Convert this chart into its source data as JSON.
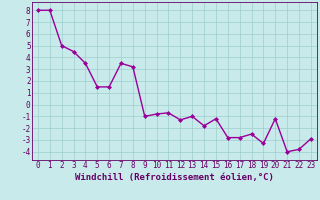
{
  "x": [
    0,
    1,
    2,
    3,
    4,
    5,
    6,
    7,
    8,
    9,
    10,
    11,
    12,
    13,
    14,
    15,
    16,
    17,
    18,
    19,
    20,
    21,
    22,
    23
  ],
  "y": [
    8,
    8,
    5,
    4.5,
    3.5,
    1.5,
    1.5,
    3.5,
    3.2,
    -1.0,
    -0.8,
    -0.7,
    -1.3,
    -1.0,
    -1.8,
    -1.2,
    -2.8,
    -2.8,
    -2.5,
    -3.3,
    -1.2,
    -4.0,
    -3.8,
    -2.9
  ],
  "line_color": "#990099",
  "marker": "D",
  "marker_size": 2,
  "bg_color": "#c8eaea",
  "grid_color": "#9ecece",
  "xlabel": "Windchill (Refroidissement éolien,°C)",
  "xlim_min": -0.5,
  "xlim_max": 23.5,
  "ylim_min": -4.7,
  "ylim_max": 8.7,
  "yticks": [
    8,
    7,
    6,
    5,
    4,
    3,
    2,
    1,
    0,
    -1,
    -2,
    -3,
    -4
  ],
  "xticks": [
    0,
    1,
    2,
    3,
    4,
    5,
    6,
    7,
    8,
    9,
    10,
    11,
    12,
    13,
    14,
    15,
    16,
    17,
    18,
    19,
    20,
    21,
    22,
    23
  ],
  "xlabel_fontsize": 6.5,
  "tick_fontsize": 5.5,
  "axis_color": "#660066",
  "line_width": 1.0
}
